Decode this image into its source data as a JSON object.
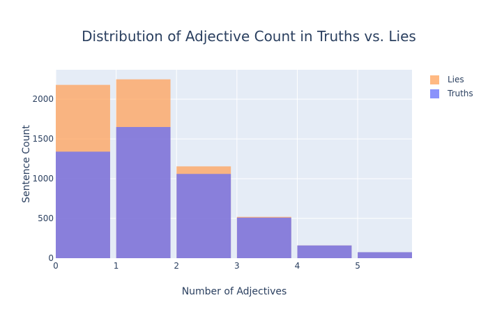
{
  "chart_data": {
    "type": "bar",
    "barmode": "overlay",
    "title": "Distribution of Adjective Count in Truths vs. Lies",
    "xlabel": "Number of Adjectives",
    "ylabel": "Sentence Count",
    "xlim": [
      0,
      5.9
    ],
    "ylim": [
      0,
      2370
    ],
    "x_ticks": [
      0,
      1,
      2,
      3,
      4,
      5
    ],
    "y_ticks": [
      0,
      500,
      1000,
      1500,
      2000
    ],
    "bins": [
      {
        "start": 0,
        "end": 0.9
      },
      {
        "start": 1,
        "end": 1.9
      },
      {
        "start": 2,
        "end": 2.9
      },
      {
        "start": 3,
        "end": 3.9
      },
      {
        "start": 4,
        "end": 4.9
      },
      {
        "start": 5,
        "end": 5.9
      }
    ],
    "series": [
      {
        "name": "Lies",
        "color": "#ffa15a",
        "values": [
          2180,
          2250,
          1155,
          520,
          160,
          75
        ]
      },
      {
        "name": "Truths",
        "color": "#636efa",
        "values": [
          1340,
          1650,
          1060,
          510,
          160,
          75
        ]
      }
    ],
    "legend": "top-right",
    "grid": true,
    "plot_background": "#e5ecf6"
  }
}
